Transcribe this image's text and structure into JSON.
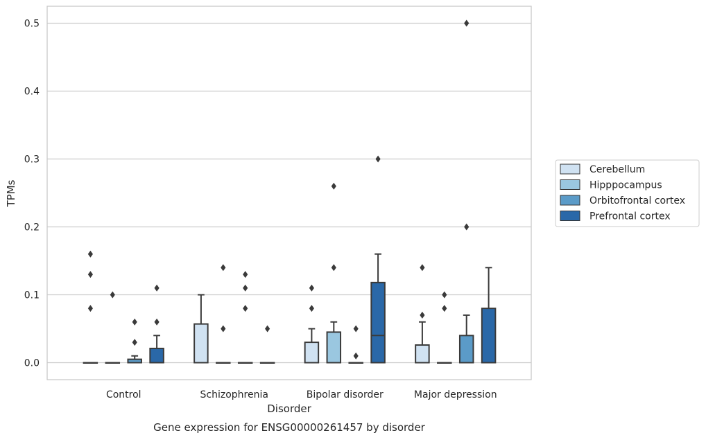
{
  "chart_data": {
    "type": "boxplot",
    "caption": "Gene expression for ENSG00000261457 by disorder",
    "xlabel": "Disorder",
    "ylabel": "TPMs",
    "ylim": [
      -0.025,
      0.525
    ],
    "yticks": [
      "0.0",
      "0.1",
      "0.2",
      "0.3",
      "0.4",
      "0.5"
    ],
    "ytick_values": [
      0.0,
      0.1,
      0.2,
      0.3,
      0.4,
      0.5
    ],
    "grid": "horizontal",
    "legend_position": "right",
    "categories": [
      "Control",
      "Schizophrenia",
      "Bipolar disorder",
      "Major depression"
    ],
    "series": [
      {
        "name": "Cerebellum",
        "color": "#d0e2f2",
        "boxes": [
          {
            "q1": 0,
            "median": 0,
            "q3": 0,
            "whisker_low": 0,
            "whisker_high": 0,
            "outliers": [
              0.08,
              0.13,
              0.16
            ]
          },
          {
            "q1": 0,
            "median": 0,
            "q3": 0.057,
            "whisker_low": 0,
            "whisker_high": 0.1,
            "outliers": []
          },
          {
            "q1": 0,
            "median": 0,
            "q3": 0.03,
            "whisker_low": 0,
            "whisker_high": 0.05,
            "outliers": [
              0.08,
              0.11
            ]
          },
          {
            "q1": 0,
            "median": 0,
            "q3": 0.026,
            "whisker_low": 0,
            "whisker_high": 0.06,
            "outliers": [
              0.07,
              0.14
            ]
          }
        ]
      },
      {
        "name": "Hipppocampus",
        "color": "#9ac7e0",
        "boxes": [
          {
            "q1": 0,
            "median": 0,
            "q3": 0,
            "whisker_low": 0,
            "whisker_high": 0,
            "outliers": [
              0.1
            ]
          },
          {
            "q1": 0,
            "median": 0,
            "q3": 0,
            "whisker_low": 0,
            "whisker_high": 0,
            "outliers": [
              0.05,
              0.14
            ]
          },
          {
            "q1": 0,
            "median": 0,
            "q3": 0.045,
            "whisker_low": 0,
            "whisker_high": 0.06,
            "outliers": [
              0.14,
              0.26
            ]
          },
          {
            "q1": 0,
            "median": 0,
            "q3": 0,
            "whisker_low": 0,
            "whisker_high": 0,
            "outliers": [
              0.08,
              0.1
            ]
          }
        ]
      },
      {
        "name": "Orbitofrontal cortex",
        "color": "#5b9bc8",
        "boxes": [
          {
            "q1": 0,
            "median": 0,
            "q3": 0.005,
            "whisker_low": 0,
            "whisker_high": 0.01,
            "outliers": [
              0.03,
              0.06
            ]
          },
          {
            "q1": 0,
            "median": 0,
            "q3": 0,
            "whisker_low": 0,
            "whisker_high": 0,
            "outliers": [
              0.08,
              0.11,
              0.13
            ]
          },
          {
            "q1": 0,
            "median": 0,
            "q3": 0,
            "whisker_low": 0,
            "whisker_high": 0,
            "outliers": [
              0.01,
              0.05
            ]
          },
          {
            "q1": 0,
            "median": 0,
            "q3": 0.04,
            "whisker_low": 0,
            "whisker_high": 0.07,
            "outliers": [
              0.2,
              0.5
            ]
          }
        ]
      },
      {
        "name": "Prefrontal cortex",
        "color": "#2a68a8",
        "boxes": [
          {
            "q1": 0,
            "median": 0,
            "q3": 0.021,
            "whisker_low": 0,
            "whisker_high": 0.04,
            "outliers": [
              0.06,
              0.11
            ]
          },
          {
            "q1": 0,
            "median": 0,
            "q3": 0,
            "whisker_low": 0,
            "whisker_high": 0,
            "outliers": [
              0.05
            ]
          },
          {
            "q1": 0,
            "median": 0.04,
            "q3": 0.118,
            "whisker_low": 0,
            "whisker_high": 0.16,
            "outliers": [
              0.3
            ]
          },
          {
            "q1": 0,
            "median": 0,
            "q3": 0.08,
            "whisker_low": 0,
            "whisker_high": 0.14,
            "outliers": []
          }
        ]
      }
    ]
  },
  "colors": {
    "grid": "#cccccc",
    "frame": "#c8c8c8",
    "line": "#3a3a3a"
  }
}
